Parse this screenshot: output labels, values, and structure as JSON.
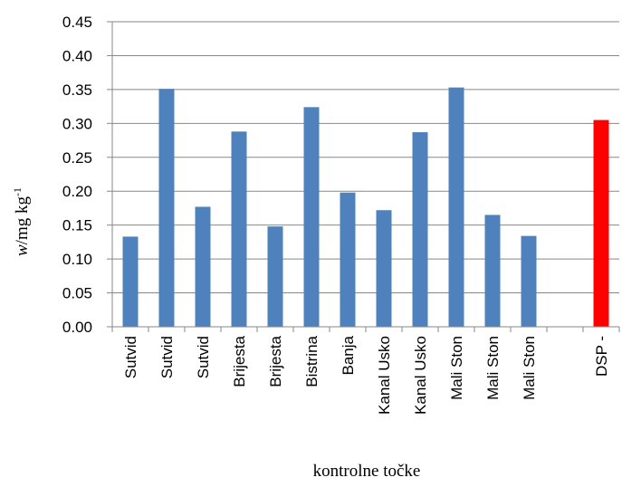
{
  "chart_data": {
    "type": "bar",
    "categories": [
      "Sutvid",
      "Sutvid",
      "Sutvid",
      "Brijesta",
      "Brijesta",
      "Bistrina",
      "Banja",
      "Kanal Usko",
      "Kanal Usko",
      "Mali Ston",
      "Mali Ston",
      "Mali Ston",
      "",
      "DSP -"
    ],
    "values": [
      0.133,
      0.351,
      0.177,
      0.288,
      0.148,
      0.324,
      0.198,
      0.172,
      0.287,
      0.353,
      0.165,
      0.134,
      null,
      0.305
    ],
    "bar_colors": [
      "#4f81bd",
      "#4f81bd",
      "#4f81bd",
      "#4f81bd",
      "#4f81bd",
      "#4f81bd",
      "#4f81bd",
      "#4f81bd",
      "#4f81bd",
      "#4f81bd",
      "#4f81bd",
      "#4f81bd",
      "#4f81bd",
      "#ff0000"
    ],
    "ylim": [
      0,
      0.45
    ],
    "yticks": [
      "0.00",
      "0.05",
      "0.10",
      "0.15",
      "0.20",
      "0.25",
      "0.30",
      "0.35",
      "0.40",
      "0.45"
    ],
    "ylabel": {
      "italic": "w",
      "main": "/mg kg",
      "sup": "-1"
    },
    "xlabel": "kontrolne točke",
    "grid": true
  }
}
